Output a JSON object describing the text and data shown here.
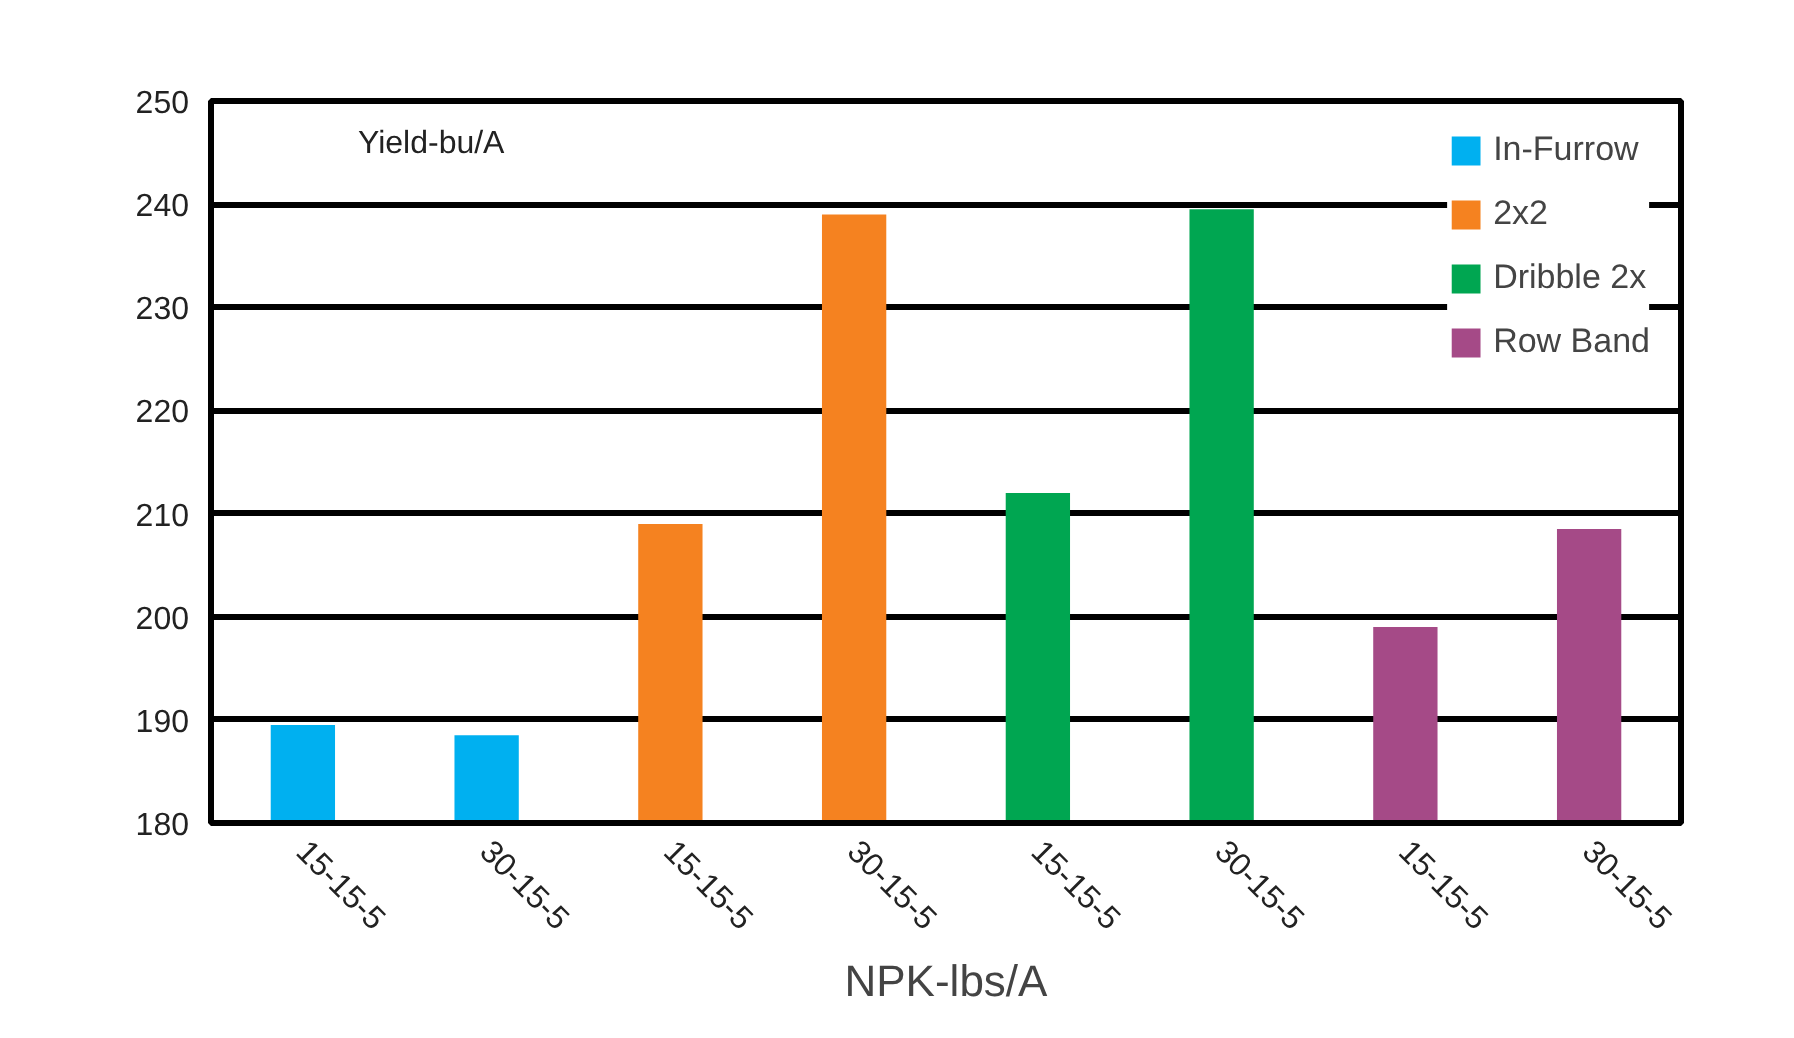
{
  "chart_data": {
    "type": "bar",
    "ylabel": "Yield-bu/A",
    "xlabel": "NPK-lbs/A",
    "categories": [
      "15-15-5",
      "30-15-5",
      "15-15-5",
      "30-15-5",
      "15-15-5",
      "30-15-5",
      "15-15-5",
      "30-15-5"
    ],
    "series": [
      {
        "name": "In-Furrow",
        "color": "#00b0f0",
        "values": [
          189.5,
          188.5,
          null,
          null,
          null,
          null,
          null,
          null
        ]
      },
      {
        "name": "2x2",
        "color": "#f58220",
        "values": [
          null,
          null,
          209,
          239,
          null,
          null,
          null,
          null
        ]
      },
      {
        "name": "Dribble 2x",
        "color": "#00a651",
        "values": [
          null,
          null,
          null,
          null,
          212,
          239.5,
          null,
          null
        ]
      },
      {
        "name": "Row Band",
        "color": "#a54a87",
        "values": [
          null,
          null,
          null,
          null,
          null,
          null,
          199,
          208.5
        ]
      }
    ],
    "ylim": [
      180,
      250
    ],
    "yticks": [
      180,
      190,
      200,
      210,
      220,
      230,
      240,
      250
    ],
    "grid": "y",
    "legend": "top right"
  }
}
